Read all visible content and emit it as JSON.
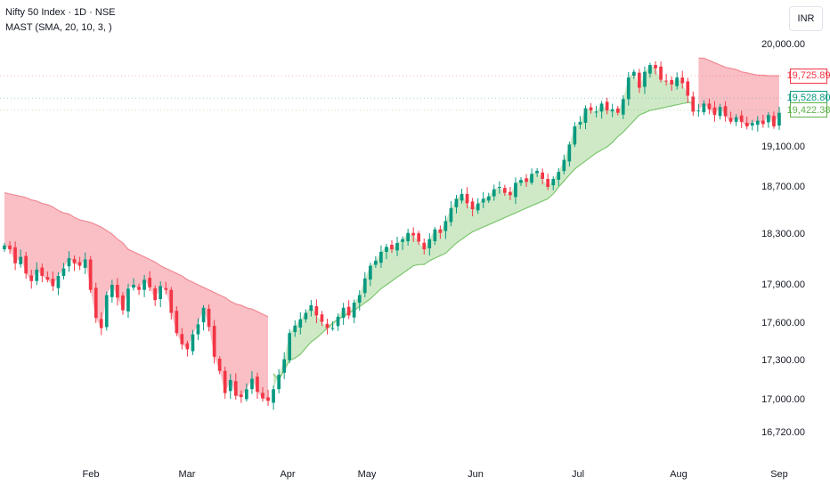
{
  "header": {
    "symbol_line": "Nifty 50 Index · 1D · NSE",
    "indicator_line": "MAST (SMA, 20, 10, 3, )"
  },
  "currency_button": "INR",
  "colors": {
    "up": "#089981",
    "down": "#f23645",
    "bear_fill": "#f7a9b2",
    "bear_fill_light": "#fbe3e6",
    "bear_line": "#f08a93",
    "bull_fill": "#cfe9c7",
    "bull_line": "#7cc66e",
    "tag_red": "#f23645",
    "tag_teal": "#089981",
    "tag_green": "#5fb34a"
  },
  "chart_data": {
    "type": "candlestick",
    "ylim": [
      16600,
      20300
    ],
    "y_ticks": [
      "20,000.00",
      "19,100.00",
      "18,700.00",
      "18,300.00",
      "17,900.00",
      "17,600.00",
      "17,300.00",
      "17,000.00",
      "16,720.00"
    ],
    "x_ticks": [
      "Feb",
      "Mar",
      "Apr",
      "May",
      "Jun",
      "Jul",
      "Aug",
      "Sep"
    ],
    "price_tags": [
      {
        "label": "19,725.89",
        "value": 19725.89,
        "color": "red"
      },
      {
        "label": "19,528.80",
        "value": 19528.8,
        "color": "teal"
      },
      {
        "label": "19,422.38",
        "value": 19422.38,
        "color": "green"
      }
    ],
    "closes": [
      18210,
      18180,
      18070,
      18120,
      17990,
      17930,
      18020,
      17970,
      17940,
      17890,
      17970,
      18030,
      18110,
      18070,
      18050,
      18100,
      17860,
      17640,
      17560,
      17820,
      17900,
      17800,
      17700,
      17870,
      17900,
      17860,
      17940,
      17880,
      17780,
      17890,
      17860,
      17680,
      17520,
      17430,
      17390,
      17510,
      17590,
      17720,
      17570,
      17330,
      17220,
      17050,
      17150,
      17030,
      17020,
      17080,
      17160,
      17060,
      17010,
      16990,
      17080,
      17190,
      17310,
      17520,
      17580,
      17630,
      17680,
      17740,
      17660,
      17610,
      17560,
      17560,
      17650,
      17720,
      17660,
      17760,
      17820,
      17950,
      18050,
      18090,
      18160,
      18200,
      18180,
      18230,
      18260,
      18310,
      18290,
      18240,
      18180,
      18260,
      18340,
      18310,
      18410,
      18520,
      18600,
      18640,
      18560,
      18510,
      18560,
      18600,
      18620,
      18680,
      18700,
      18650,
      18630,
      18740,
      18770,
      18750,
      18830,
      18860,
      18780,
      18700,
      18780,
      18850,
      18970,
      19120,
      19280,
      19320,
      19440,
      19420,
      19410,
      19480,
      19420,
      19430,
      19400,
      19520,
      19710,
      19760,
      19620,
      19760,
      19820,
      19790,
      19690,
      19680,
      19650,
      19710,
      19660,
      19550,
      19410,
      19420,
      19480,
      19430,
      19380,
      19450,
      19370,
      19320,
      19360,
      19320,
      19280,
      19310,
      19330,
      19300,
      19380,
      19280,
      19400
    ],
    "upper_band": [
      18650,
      18640,
      18630,
      18620,
      18610,
      18590,
      18580,
      18560,
      18550,
      18530,
      18500,
      18480,
      18470,
      18440,
      18420,
      18410,
      18400,
      18380,
      18360,
      18330,
      18300,
      18260,
      18230,
      18180,
      18160,
      18140,
      18120,
      18100,
      18080,
      18050,
      18030,
      18010,
      17990,
      17970,
      17940,
      17920,
      17900,
      17880,
      17860,
      17840,
      17820,
      17800,
      17770,
      17750,
      17740,
      17720,
      17710,
      17690,
      17670,
      17650,
      null,
      null,
      null,
      null,
      null,
      null,
      null,
      null,
      null,
      null,
      null,
      null,
      null,
      null,
      null,
      null,
      null,
      null,
      null,
      null,
      null,
      null,
      null,
      null,
      null,
      null,
      null,
      null,
      null,
      null,
      null,
      null,
      null,
      null,
      null,
      null,
      null,
      null,
      null,
      null,
      null,
      null,
      null,
      null,
      null,
      null,
      null,
      null,
      null,
      null,
      null,
      null,
      null,
      null,
      null,
      null,
      null,
      null,
      null,
      null,
      null,
      null,
      null,
      null,
      null,
      null,
      null,
      null,
      null,
      null,
      null,
      null,
      null,
      null,
      null,
      null,
      null,
      null,
      null,
      19880,
      19880,
      19860,
      19840,
      19820,
      19800,
      19790,
      19780,
      19760,
      19750,
      19740,
      19730,
      19730,
      19725,
      19725,
      19725
    ],
    "lower_band": [
      18650,
      18640,
      18630,
      18620,
      18610,
      18590,
      18580,
      18560,
      18550,
      18530,
      18500,
      18480,
      18470,
      18440,
      18420,
      18410,
      18400,
      18380,
      18360,
      18330,
      18300,
      18260,
      18230,
      18180,
      18160,
      18140,
      18120,
      18100,
      18080,
      18050,
      18030,
      18010,
      17990,
      17970,
      17940,
      17920,
      17900,
      17880,
      17860,
      17840,
      17820,
      17800,
      17770,
      17750,
      17740,
      17720,
      17710,
      17690,
      17670,
      17650,
      17200,
      17150,
      17230,
      17300,
      17320,
      17350,
      17400,
      17450,
      17480,
      17520,
      17560,
      17600,
      17630,
      17650,
      17680,
      17700,
      17730,
      17760,
      17790,
      17830,
      17870,
      17900,
      17930,
      17960,
      17990,
      18020,
      18050,
      18060,
      18060,
      18090,
      18110,
      18130,
      18150,
      18190,
      18230,
      18260,
      18290,
      18320,
      18340,
      18360,
      18380,
      18400,
      18420,
      18440,
      18460,
      18480,
      18500,
      18520,
      18540,
      18560,
      18580,
      18600,
      18640,
      18700,
      18760,
      18820,
      18880,
      18920,
      18960,
      19000,
      19040,
      19070,
      19100,
      19140,
      19190,
      19230,
      19280,
      19330,
      19380,
      19400,
      19420,
      19430,
      19440,
      19450,
      19460,
      19470,
      19480,
      19490,
      19490,
      19500,
      19505,
      19510,
      19515,
      19520,
      19525,
      19528,
      19528,
      19528,
      19528,
      19528,
      19528,
      19528,
      19528,
      19528,
      19528
    ]
  }
}
